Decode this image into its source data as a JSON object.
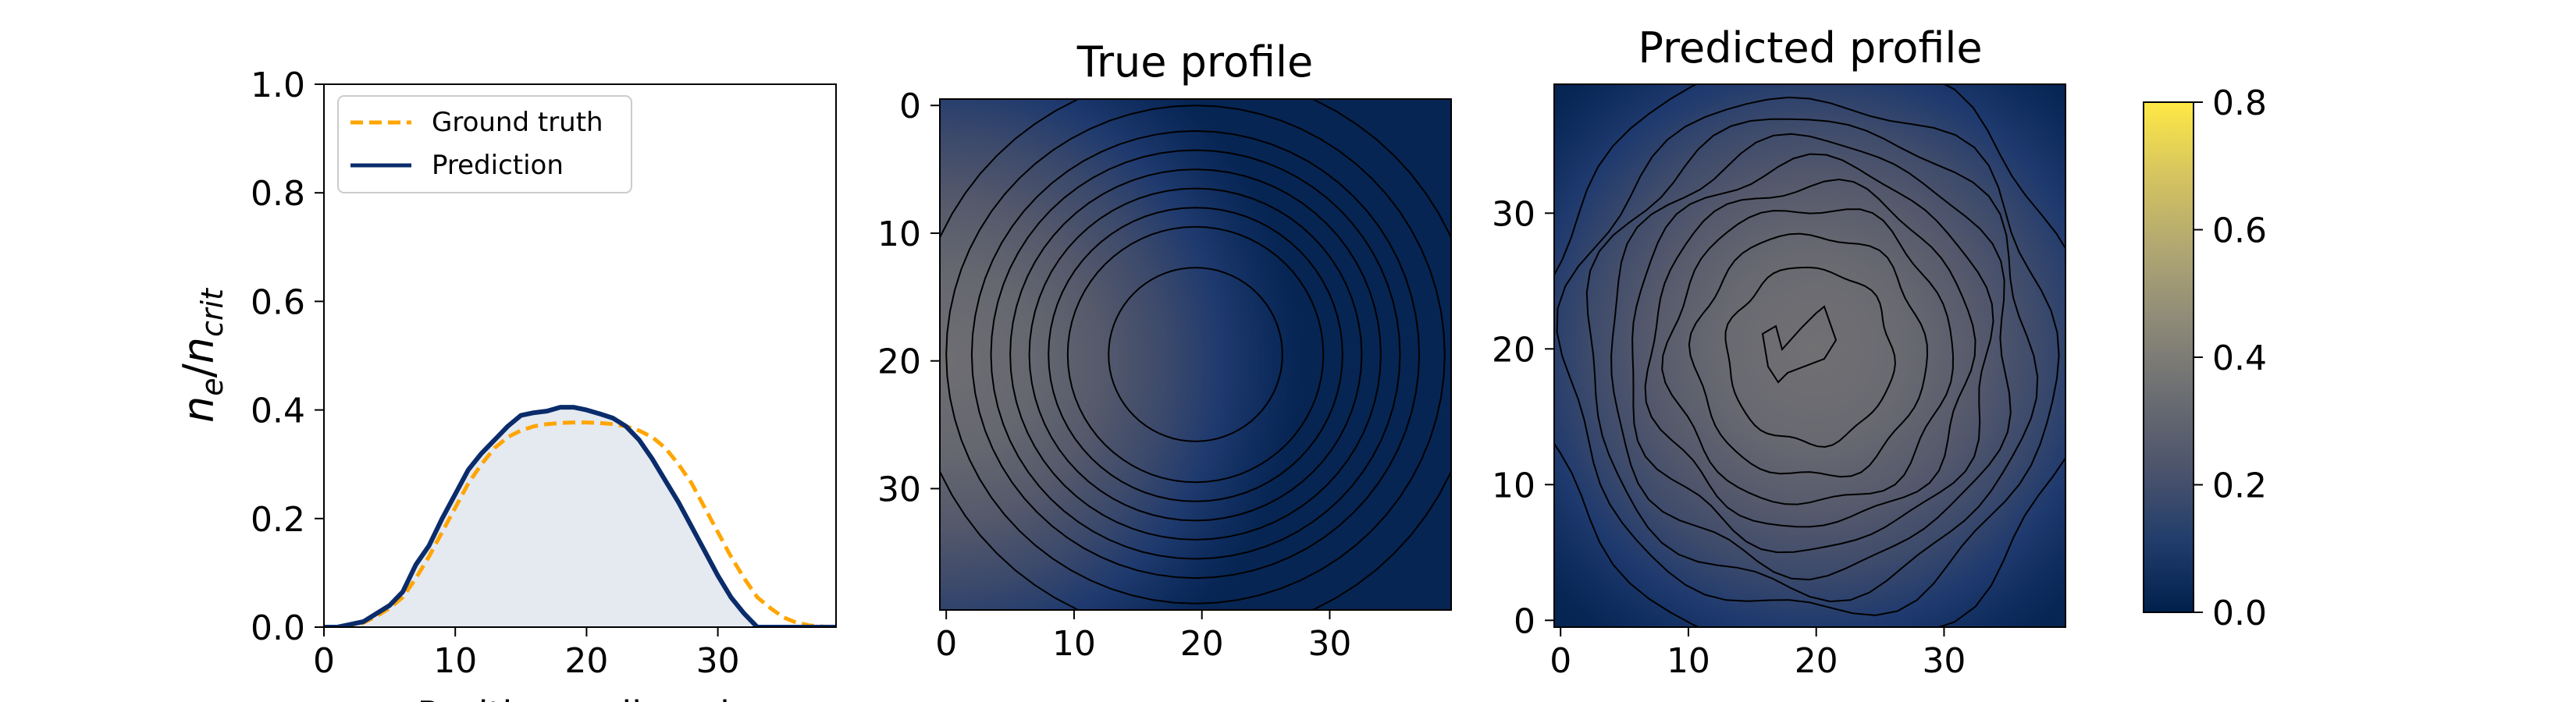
{
  "chart_data": [
    {
      "type": "line",
      "xlabel": "Position, cells, arb",
      "ylabel": "n_e/n_crit",
      "ylabel_parts": {
        "n1": "n",
        "s1": "e",
        "slash": "/",
        "n2": "n",
        "s2": "crit"
      },
      "xlim": [
        0,
        39
      ],
      "ylim": [
        0,
        1.0
      ],
      "xticks": [
        "0",
        "10",
        "20",
        "30"
      ],
      "yticks": [
        "0.0",
        "0.2",
        "0.4",
        "0.6",
        "0.8",
        "1.0"
      ],
      "legend_position": "upper-left",
      "fill_under": "Prediction",
      "series": [
        {
          "name": "Ground truth",
          "color": "#ffa500",
          "style": "dashed",
          "x": [
            0,
            1,
            2,
            3,
            4,
            5,
            6,
            7,
            8,
            9,
            10,
            11,
            12,
            13,
            14,
            15,
            16,
            17,
            18,
            19,
            20,
            21,
            22,
            23,
            24,
            25,
            26,
            27,
            28,
            29,
            30,
            31,
            32,
            33,
            34,
            35,
            36,
            37,
            38,
            39
          ],
          "y": [
            0.0,
            0.0,
            0.003,
            0.008,
            0.02,
            0.035,
            0.055,
            0.09,
            0.13,
            0.175,
            0.22,
            0.265,
            0.3,
            0.33,
            0.35,
            0.362,
            0.37,
            0.374,
            0.376,
            0.377,
            0.377,
            0.376,
            0.374,
            0.37,
            0.362,
            0.35,
            0.33,
            0.3,
            0.265,
            0.22,
            0.175,
            0.13,
            0.09,
            0.055,
            0.035,
            0.018,
            0.008,
            0.003,
            0.001,
            0.0
          ]
        },
        {
          "name": "Prediction",
          "color": "#0a2c6b",
          "style": "solid",
          "x": [
            0,
            1,
            2,
            3,
            4,
            5,
            6,
            7,
            8,
            9,
            10,
            11,
            12,
            13,
            14,
            15,
            16,
            17,
            18,
            19,
            20,
            21,
            22,
            23,
            24,
            25,
            26,
            27,
            28,
            29,
            30,
            31,
            32,
            33,
            34,
            35,
            36,
            37,
            38,
            39
          ],
          "y": [
            0.0,
            0.0,
            0.005,
            0.01,
            0.025,
            0.04,
            0.065,
            0.115,
            0.15,
            0.2,
            0.245,
            0.29,
            0.32,
            0.345,
            0.37,
            0.39,
            0.395,
            0.398,
            0.405,
            0.405,
            0.4,
            0.393,
            0.385,
            0.37,
            0.345,
            0.31,
            0.27,
            0.23,
            0.185,
            0.14,
            0.095,
            0.055,
            0.025,
            0.0,
            0.0,
            0.0,
            0.0,
            0.0,
            0.0,
            0.0
          ]
        }
      ]
    },
    {
      "type": "heatmap",
      "title": "True profile",
      "x_range": [
        0,
        39
      ],
      "y_range": [
        0,
        39
      ],
      "y_axis": "top-down",
      "xticks": [
        "0",
        "10",
        "20",
        "30"
      ],
      "yticks": [
        "0",
        "10",
        "20",
        "30"
      ],
      "center": [
        19.5,
        19.5
      ],
      "peak_value": 0.38,
      "contour_radii": [
        6.8,
        10,
        11.5,
        13,
        14.5,
        16,
        17.5,
        19.5,
        22
      ]
    },
    {
      "type": "heatmap",
      "title": "Predicted profile",
      "x_range": [
        0,
        39
      ],
      "y_range": [
        0,
        39
      ],
      "y_axis": "bottom-up",
      "xticks": [
        "0",
        "10",
        "20",
        "30"
      ],
      "yticks": [
        "0",
        "10",
        "20",
        "30"
      ],
      "center": [
        19.5,
        19.5
      ],
      "peak_value": 0.4,
      "contour_radii": [
        6.5,
        9,
        11,
        12.6,
        14.2,
        15.8,
        17.4,
        19,
        21.5
      ]
    }
  ],
  "colorbar": {
    "min": 0.0,
    "max": 0.8,
    "ticks": [
      "0.0",
      "0.2",
      "0.4",
      "0.6",
      "0.8"
    ],
    "colors": [
      "#00204c",
      "#213d6b",
      "#4c546c",
      "#6c6e72",
      "#8e8a78",
      "#b0a672",
      "#d6c55f",
      "#ffe945"
    ]
  }
}
